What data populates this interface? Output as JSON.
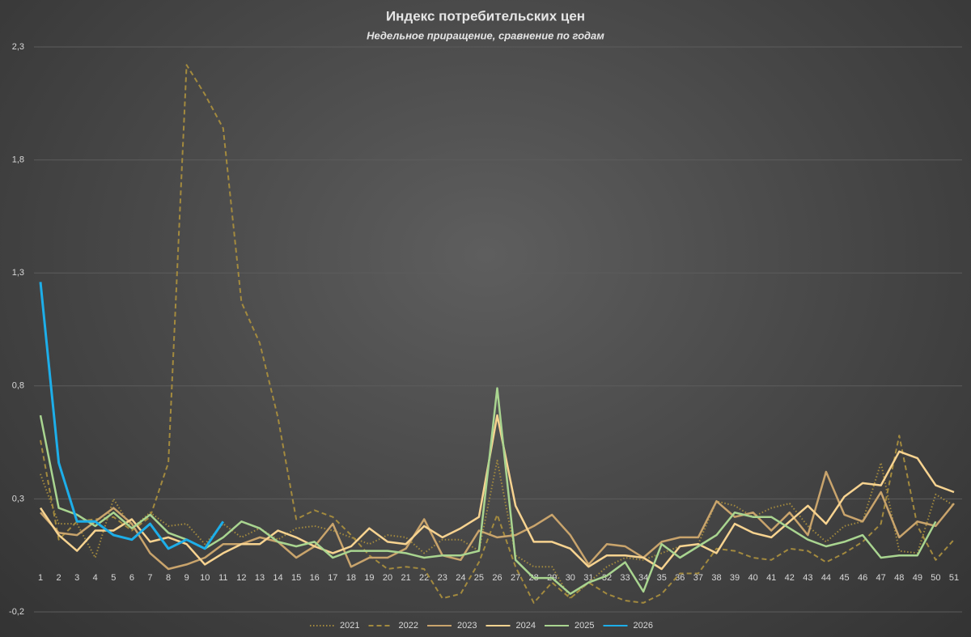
{
  "chart_data": {
    "type": "line",
    "title": "Индекс потребительских цен",
    "subtitle": "Недельное приращение, сравнение по годам",
    "categories": [
      1,
      2,
      3,
      4,
      5,
      6,
      7,
      8,
      9,
      10,
      11,
      12,
      13,
      14,
      15,
      16,
      17,
      18,
      19,
      20,
      21,
      22,
      23,
      24,
      25,
      26,
      27,
      28,
      29,
      30,
      31,
      32,
      33,
      34,
      35,
      36,
      37,
      38,
      39,
      40,
      41,
      42,
      43,
      44,
      45,
      46,
      47,
      48,
      49,
      50,
      51
    ],
    "ylim": [
      -0.2,
      2.3
    ],
    "yticks": [
      {
        "value": -0.2,
        "label": "-0,2"
      },
      {
        "value": 0.3,
        "label": "0,3"
      },
      {
        "value": 0.8,
        "label": "0,8"
      },
      {
        "value": 1.3,
        "label": "1,3"
      },
      {
        "value": 1.8,
        "label": "1,8"
      },
      {
        "value": 2.3,
        "label": "2,3"
      }
    ],
    "grid": true,
    "legend": "bottom",
    "series": [
      {
        "name": "2021",
        "color": "#a38a3e",
        "dash": "dotted",
        "values": [
          0.41,
          0.19,
          0.19,
          0.04,
          0.3,
          0.17,
          0.24,
          0.18,
          0.19,
          0.1,
          0.19,
          0.13,
          0.17,
          0.12,
          0.17,
          0.18,
          0.16,
          0.13,
          0.1,
          0.14,
          0.13,
          0.06,
          0.12,
          0.12,
          0.07,
          0.47,
          0.05,
          0.0,
          0.0,
          -0.14,
          -0.07,
          0.0,
          0.04,
          0.03,
          0.06,
          0.09,
          0.1,
          0.29,
          0.27,
          0.22,
          0.26,
          0.28,
          0.18,
          0.11,
          0.18,
          0.2,
          0.46,
          0.07,
          0.06,
          0.32,
          0.27
        ]
      },
      {
        "name": "2022",
        "color": "#a38a3e",
        "dash": "dashed",
        "values": [
          0.56,
          0.12,
          0.2,
          0.21,
          0.22,
          0.16,
          0.22,
          0.46,
          2.22,
          2.09,
          1.94,
          1.17,
          0.99,
          0.66,
          0.21,
          0.25,
          0.22,
          0.14,
          0.05,
          -0.01,
          0.0,
          -0.01,
          -0.14,
          -0.12,
          0.02,
          0.23,
          0.0,
          -0.16,
          -0.07,
          -0.14,
          -0.07,
          -0.12,
          -0.15,
          -0.16,
          -0.12,
          -0.03,
          -0.03,
          0.08,
          0.07,
          0.04,
          0.03,
          0.08,
          0.07,
          0.02,
          0.06,
          0.11,
          0.19,
          0.58,
          0.18,
          0.03,
          0.12
        ]
      },
      {
        "name": "2023",
        "color": "#c9a46c",
        "dash": "solid",
        "values": [
          0.24,
          0.15,
          0.14,
          0.2,
          0.26,
          0.19,
          0.06,
          -0.01,
          0.01,
          0.04,
          0.1,
          0.1,
          0.13,
          0.11,
          0.04,
          0.09,
          0.19,
          0.0,
          0.04,
          0.04,
          0.08,
          0.21,
          0.05,
          0.03,
          0.16,
          0.13,
          0.14,
          0.18,
          0.23,
          0.14,
          0.01,
          0.1,
          0.09,
          0.04,
          0.11,
          0.13,
          0.13,
          0.29,
          0.22,
          0.24,
          0.16,
          0.24,
          0.14,
          0.42,
          0.23,
          0.2,
          0.33,
          0.13,
          0.2,
          0.18,
          0.28
        ]
      },
      {
        "name": "2024",
        "color": "#f7d390",
        "dash": "solid",
        "values": [
          0.26,
          0.14,
          0.07,
          0.16,
          0.16,
          0.21,
          0.11,
          0.13,
          0.1,
          0.01,
          0.06,
          0.1,
          0.1,
          0.16,
          0.13,
          0.09,
          0.06,
          0.09,
          0.17,
          0.11,
          0.1,
          0.18,
          0.13,
          0.17,
          0.22,
          0.67,
          0.27,
          0.11,
          0.11,
          0.08,
          0.0,
          0.05,
          0.05,
          0.04,
          -0.01,
          0.09,
          0.1,
          0.06,
          0.19,
          0.15,
          0.13,
          0.2,
          0.27,
          0.19,
          0.31,
          0.37,
          0.36,
          0.51,
          0.48,
          0.36,
          0.33
        ]
      },
      {
        "name": "2025",
        "color": "#a9d590",
        "dash": "solid",
        "values": [
          0.67,
          0.26,
          0.23,
          0.18,
          0.24,
          0.17,
          0.23,
          0.15,
          0.12,
          0.08,
          0.13,
          0.2,
          0.17,
          0.11,
          0.09,
          0.11,
          0.04,
          0.07,
          0.07,
          0.07,
          0.06,
          0.04,
          0.05,
          0.05,
          0.07,
          0.79,
          0.03,
          -0.05,
          -0.05,
          -0.12,
          -0.07,
          -0.04,
          0.02,
          -0.11,
          0.1,
          0.04,
          0.09,
          0.14,
          0.24,
          0.22,
          0.22,
          0.17,
          0.12,
          0.09,
          0.11,
          0.14,
          0.04,
          0.05,
          0.05,
          0.2,
          null
        ]
      },
      {
        "name": "2026",
        "color": "#1daee9",
        "dash": "solid",
        "values": [
          1.26,
          0.46,
          0.2,
          0.2,
          0.14,
          0.12,
          0.19,
          0.08,
          0.12,
          0.08,
          0.2,
          null,
          null,
          null,
          null,
          null,
          null,
          null,
          null,
          null,
          null,
          null,
          null,
          null,
          null,
          null,
          null,
          null,
          null,
          null,
          null,
          null,
          null,
          null,
          null,
          null,
          null,
          null,
          null,
          null,
          null,
          null,
          null,
          null,
          null,
          null,
          null,
          null,
          null,
          null,
          null
        ]
      }
    ]
  }
}
